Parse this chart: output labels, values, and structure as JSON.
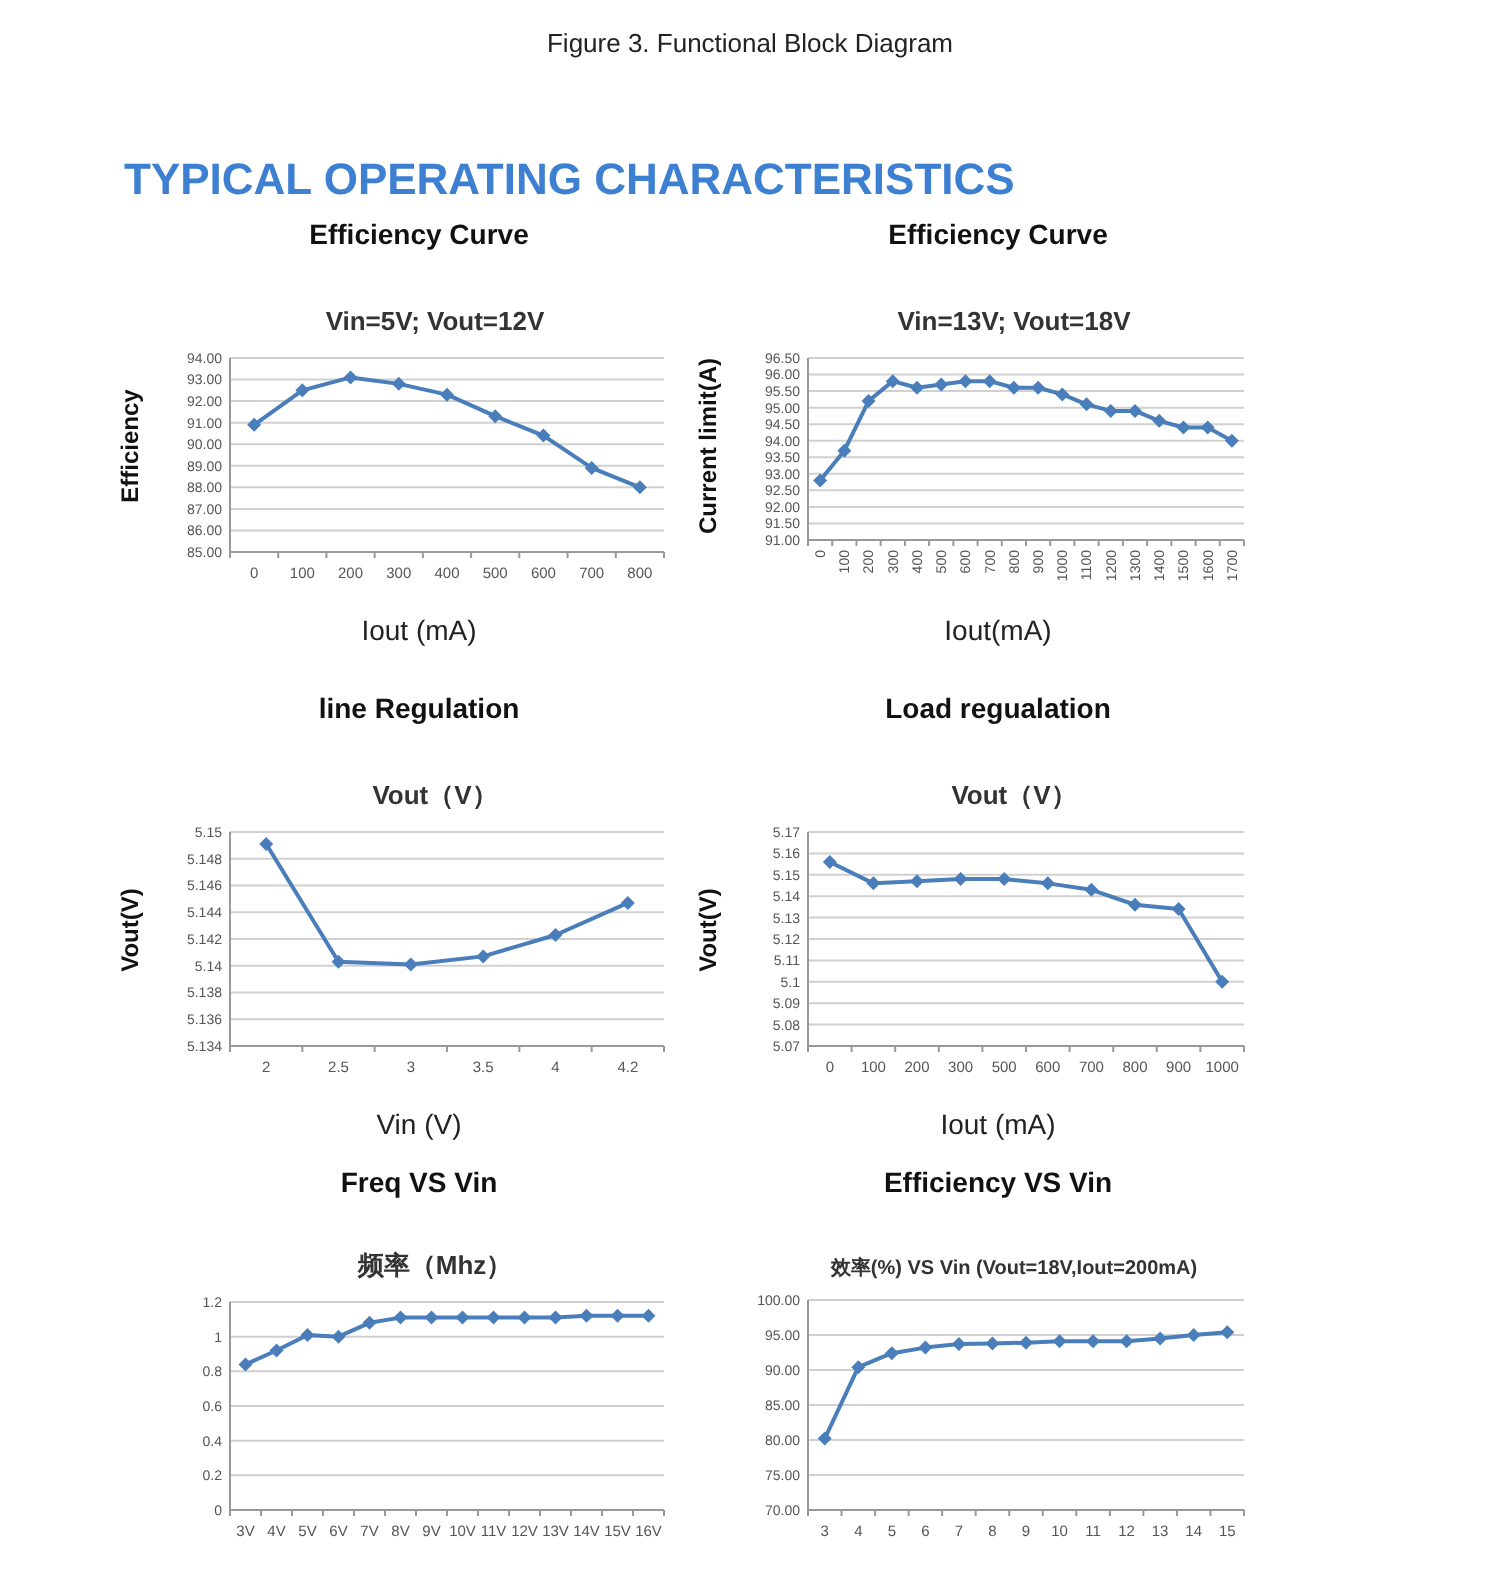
{
  "chart_data": [
    {
      "type": "line",
      "title": "Efficiency Curve",
      "subtitle": "Vin=5V; Vout=12V",
      "xlabel": "Iout (mA)",
      "ylabel": "Efficiency",
      "annotations": [
        "Figure 3. Functional Block Diagram",
        "TYPICAL OPERATING CHARACTERISTICS"
      ],
      "categories": [
        "0",
        "100",
        "200",
        "300",
        "400",
        "500",
        "600",
        "700",
        "800"
      ],
      "values": [
        90.9,
        92.5,
        93.1,
        92.8,
        92.3,
        91.3,
        90.4,
        88.9,
        88.0
      ],
      "color": "#4a7ebb",
      "ylim": [
        85,
        94
      ],
      "yticks": [
        {
          "value": 85,
          "label": "85.00"
        },
        {
          "value": 86,
          "label": "86.00"
        },
        {
          "value": 87,
          "label": "87.00"
        },
        {
          "value": 88,
          "label": "88.00"
        },
        {
          "value": 89,
          "label": "89.00"
        },
        {
          "value": 90,
          "label": "90.00"
        },
        {
          "value": 91,
          "label": "91.00"
        },
        {
          "value": 92,
          "label": "92.00"
        },
        {
          "value": 93,
          "label": "93.00"
        },
        {
          "value": 94,
          "label": "94.00"
        }
      ],
      "grid": "y",
      "marker": "diamond"
    },
    {
      "type": "line",
      "title": "Efficiency Curve",
      "subtitle": "Vin=13V; Vout=18V",
      "xlabel": "Iout(mA)",
      "ylabel": "Current limit(A)",
      "categories": [
        "0",
        "100",
        "200",
        "300",
        "400",
        "500",
        "600",
        "700",
        "800",
        "900",
        "1000",
        "1100",
        "1200",
        "1300",
        "1400",
        "1500",
        "1600",
        "1700"
      ],
      "values": [
        92.8,
        93.7,
        95.2,
        95.8,
        95.6,
        95.7,
        95.8,
        95.8,
        95.6,
        95.6,
        95.4,
        95.1,
        94.9,
        94.9,
        94.6,
        94.4,
        94.4,
        94.0
      ],
      "color": "#4a7ebb",
      "ylim": [
        91,
        96.5
      ],
      "yticks": [
        {
          "value": 91,
          "label": "91.00"
        },
        {
          "value": 91.5,
          "label": "91.50"
        },
        {
          "value": 92,
          "label": "92.00"
        },
        {
          "value": 92.5,
          "label": "92.50"
        },
        {
          "value": 93,
          "label": "93.00"
        },
        {
          "value": 93.5,
          "label": "93.50"
        },
        {
          "value": 94,
          "label": "94.00"
        },
        {
          "value": 94.5,
          "label": "94.50"
        },
        {
          "value": 95,
          "label": "95.00"
        },
        {
          "value": 95.5,
          "label": "95.50"
        },
        {
          "value": 96,
          "label": "96.00"
        },
        {
          "value": 96.5,
          "label": "96.50"
        }
      ],
      "grid": "y",
      "marker": "diamond"
    },
    {
      "type": "line",
      "title": "line Regulation",
      "subtitle": "Vout（V）",
      "xlabel": "Vin (V)",
      "ylabel": "Vout(V)",
      "categories": [
        "2",
        "2.5",
        "3",
        "3.5",
        "4",
        "4.2"
      ],
      "values": [
        5.1491,
        5.1403,
        5.1401,
        5.1407,
        5.1423,
        5.1447
      ],
      "color": "#4a7ebb",
      "ylim": [
        5.134,
        5.15
      ],
      "yticks": [
        5.134,
        5.136,
        5.138,
        5.14,
        5.142,
        5.144,
        5.146,
        5.148,
        5.15
      ],
      "grid": "y",
      "marker": "diamond"
    },
    {
      "type": "line",
      "title": "Load regualation",
      "subtitle": "Vout（V）",
      "xlabel": "Iout (mA)",
      "ylabel": "Vout(V)",
      "categories": [
        "0",
        "100",
        "200",
        "300",
        "500",
        "600",
        "700",
        "800",
        "900",
        "1000"
      ],
      "values": [
        5.156,
        5.146,
        5.147,
        5.148,
        5.148,
        5.146,
        5.143,
        5.136,
        5.134,
        5.1
      ],
      "color": "#4a7ebb",
      "ylim": [
        5.07,
        5.17
      ],
      "yticks": [
        5.07,
        5.08,
        5.09,
        5.1,
        5.11,
        5.12,
        5.13,
        5.14,
        5.15,
        5.16,
        5.17
      ],
      "grid": "y",
      "marker": "diamond"
    },
    {
      "type": "line",
      "title": "Freq VS Vin",
      "subtitle": "频率（Mhz）",
      "categories": [
        "3V",
        "4V",
        "5V",
        "6V",
        "7V",
        "8V",
        "9V",
        "10V",
        "11V",
        "12V",
        "13V",
        "14V",
        "15V",
        "16V"
      ],
      "values": [
        0.84,
        0.92,
        1.01,
        1.0,
        1.08,
        1.11,
        1.11,
        1.11,
        1.11,
        1.11,
        1.11,
        1.12,
        1.12,
        1.12
      ],
      "color": "#4a7ebb",
      "ylim": [
        0,
        1.2
      ],
      "yticks": [
        0,
        0.2,
        0.4,
        0.6,
        0.8,
        1,
        1.2
      ],
      "grid": "y",
      "marker": "diamond"
    },
    {
      "type": "line",
      "title": "Efficiency VS Vin",
      "subtitle": "效率(%) VS  Vin (Vout=18V,Iout=200mA)",
      "categories": [
        "3",
        "4",
        "5",
        "6",
        "7",
        "8",
        "9",
        "10",
        "11",
        "12",
        "13",
        "14",
        "15"
      ],
      "values": [
        80.2,
        90.4,
        92.4,
        93.2,
        93.7,
        93.8,
        93.9,
        94.1,
        94.1,
        94.1,
        94.5,
        95.0,
        95.4
      ],
      "color": "#4a7ebb",
      "ylim": [
        70,
        100
      ],
      "yticks": [
        {
          "value": 70,
          "label": "70.00"
        },
        {
          "value": 75,
          "label": "75.00"
        },
        {
          "value": 80,
          "label": "80.00"
        },
        {
          "value": 85,
          "label": "85.00"
        },
        {
          "value": 90,
          "label": "90.00"
        },
        {
          "value": 95,
          "label": "95.00"
        },
        {
          "value": 100,
          "label": "100.00"
        }
      ],
      "grid": "y",
      "marker": "diamond"
    }
  ]
}
